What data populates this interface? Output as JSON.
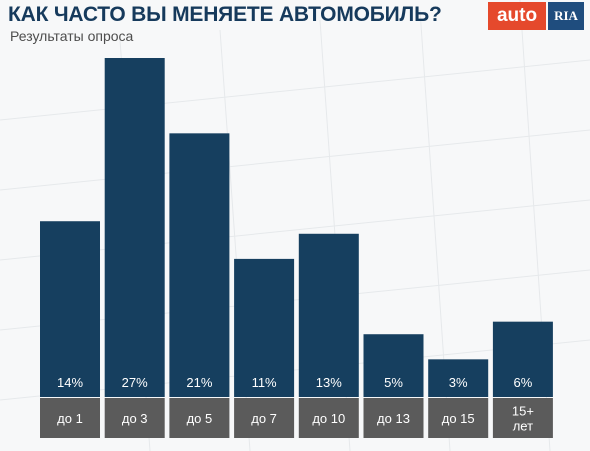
{
  "header": {
    "title": "КАК ЧАСТО ВЫ МЕНЯЕТЕ АВТОМОБИЛЬ?",
    "subtitle": "Результаты опроса"
  },
  "logo": {
    "part1": "auto",
    "part2": "RIA"
  },
  "colors": {
    "bar": "#163f5f",
    "label_box": "#5b5b5b",
    "title": "#163a5c"
  },
  "chart_data": {
    "type": "bar",
    "categories": [
      "до 1",
      "до 3",
      "до 5",
      "до 7",
      "до 10",
      "до 13",
      "до 15",
      "15+\nлет"
    ],
    "values": [
      14,
      27,
      21,
      11,
      13,
      5,
      3,
      6
    ],
    "value_labels": [
      "14%",
      "27%",
      "21%",
      "11%",
      "13%",
      "5%",
      "3%",
      "6%"
    ],
    "unit": "%",
    "ylim": [
      0,
      27
    ],
    "grid": false,
    "legend": "none"
  }
}
